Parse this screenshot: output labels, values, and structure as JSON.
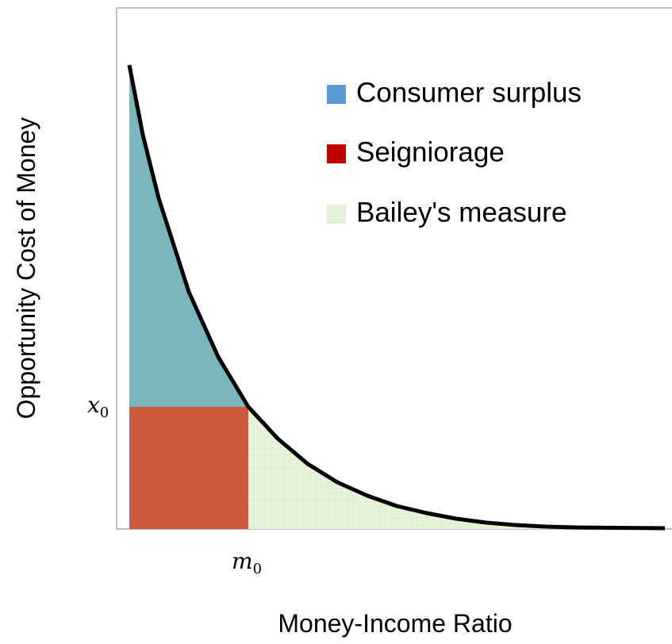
{
  "axes": {
    "x_title": "Money-Income Ratio",
    "y_title": "Opportunity Cost of Money"
  },
  "markers": {
    "x_level": {
      "symbol": "x",
      "subscript": "0"
    },
    "m_level": {
      "symbol": "m",
      "subscript": "0"
    }
  },
  "legend": [
    {
      "label": "Consumer surplus"
    },
    {
      "label": "Seigniorage"
    },
    {
      "label": "Bailey's measure"
    }
  ]
}
